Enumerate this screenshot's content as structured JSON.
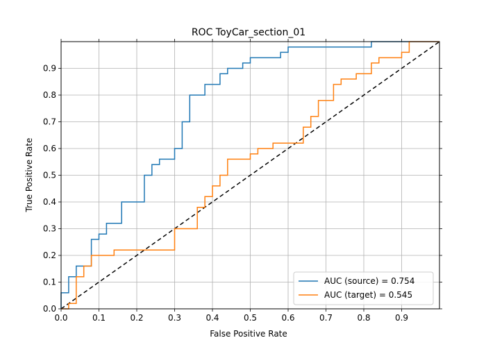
{
  "chart_data": {
    "type": "line",
    "title": "ROC ToyCar_section_01",
    "xlabel": "False Positive Rate",
    "ylabel": "True Positive Rate",
    "xlim": [
      0.0,
      1.0
    ],
    "ylim": [
      0.0,
      1.0
    ],
    "xticks": [
      0.0,
      0.1,
      0.2,
      0.3,
      0.4,
      0.5,
      0.6,
      0.7,
      0.8,
      0.9
    ],
    "xtick_labels": [
      "0.0",
      "0.1",
      "0.2",
      "0.3",
      "0.4",
      "0.5",
      "0.6",
      "0.7",
      "0.8",
      "0.9"
    ],
    "yticks": [
      0.0,
      0.1,
      0.2,
      0.3,
      0.4,
      0.5,
      0.6,
      0.7,
      0.8,
      0.9
    ],
    "ytick_labels": [
      "0.0",
      "0.1",
      "0.2",
      "0.3",
      "0.4",
      "0.5",
      "0.6",
      "0.7",
      "0.8",
      "0.9"
    ],
    "grid": true,
    "legend_position": "bottom-right",
    "colors": {
      "source": "#1f77b4",
      "target": "#ff7f0e",
      "diagonal": "#000000"
    },
    "series": [
      {
        "name": "AUC (source) = 0.754",
        "color": "#1f77b4",
        "points": [
          [
            0.0,
            0.0
          ],
          [
            0.0,
            0.06
          ],
          [
            0.02,
            0.06
          ],
          [
            0.02,
            0.12
          ],
          [
            0.04,
            0.12
          ],
          [
            0.04,
            0.16
          ],
          [
            0.06,
            0.16
          ],
          [
            0.08,
            0.16
          ],
          [
            0.08,
            0.26
          ],
          [
            0.1,
            0.26
          ],
          [
            0.1,
            0.28
          ],
          [
            0.12,
            0.28
          ],
          [
            0.12,
            0.32
          ],
          [
            0.16,
            0.32
          ],
          [
            0.16,
            0.4
          ],
          [
            0.22,
            0.4
          ],
          [
            0.22,
            0.5
          ],
          [
            0.24,
            0.5
          ],
          [
            0.24,
            0.54
          ],
          [
            0.26,
            0.54
          ],
          [
            0.26,
            0.56
          ],
          [
            0.3,
            0.56
          ],
          [
            0.3,
            0.6
          ],
          [
            0.32,
            0.6
          ],
          [
            0.32,
            0.7
          ],
          [
            0.34,
            0.7
          ],
          [
            0.34,
            0.8
          ],
          [
            0.38,
            0.8
          ],
          [
            0.38,
            0.84
          ],
          [
            0.42,
            0.84
          ],
          [
            0.42,
            0.88
          ],
          [
            0.44,
            0.88
          ],
          [
            0.44,
            0.9
          ],
          [
            0.48,
            0.9
          ],
          [
            0.48,
            0.92
          ],
          [
            0.5,
            0.92
          ],
          [
            0.5,
            0.94
          ],
          [
            0.58,
            0.94
          ],
          [
            0.58,
            0.96
          ],
          [
            0.6,
            0.96
          ],
          [
            0.6,
            0.98
          ],
          [
            0.82,
            0.98
          ],
          [
            0.82,
            1.0
          ],
          [
            1.0,
            1.0
          ]
        ]
      },
      {
        "name": "AUC (target) = 0.545",
        "color": "#ff7f0e",
        "points": [
          [
            0.0,
            0.0
          ],
          [
            0.02,
            0.0
          ],
          [
            0.02,
            0.02
          ],
          [
            0.04,
            0.02
          ],
          [
            0.04,
            0.12
          ],
          [
            0.06,
            0.12
          ],
          [
            0.06,
            0.16
          ],
          [
            0.08,
            0.16
          ],
          [
            0.08,
            0.2
          ],
          [
            0.14,
            0.2
          ],
          [
            0.14,
            0.22
          ],
          [
            0.3,
            0.22
          ],
          [
            0.3,
            0.3
          ],
          [
            0.36,
            0.3
          ],
          [
            0.36,
            0.38
          ],
          [
            0.38,
            0.38
          ],
          [
            0.38,
            0.42
          ],
          [
            0.4,
            0.42
          ],
          [
            0.4,
            0.46
          ],
          [
            0.42,
            0.46
          ],
          [
            0.42,
            0.5
          ],
          [
            0.44,
            0.5
          ],
          [
            0.44,
            0.56
          ],
          [
            0.5,
            0.56
          ],
          [
            0.5,
            0.58
          ],
          [
            0.52,
            0.58
          ],
          [
            0.52,
            0.6
          ],
          [
            0.56,
            0.6
          ],
          [
            0.56,
            0.62
          ],
          [
            0.64,
            0.62
          ],
          [
            0.64,
            0.68
          ],
          [
            0.66,
            0.68
          ],
          [
            0.66,
            0.72
          ],
          [
            0.68,
            0.72
          ],
          [
            0.68,
            0.78
          ],
          [
            0.72,
            0.78
          ],
          [
            0.72,
            0.84
          ],
          [
            0.74,
            0.84
          ],
          [
            0.74,
            0.86
          ],
          [
            0.78,
            0.86
          ],
          [
            0.78,
            0.88
          ],
          [
            0.82,
            0.88
          ],
          [
            0.82,
            0.92
          ],
          [
            0.84,
            0.92
          ],
          [
            0.84,
            0.94
          ],
          [
            0.9,
            0.94
          ],
          [
            0.9,
            0.96
          ],
          [
            0.92,
            0.96
          ],
          [
            0.92,
            1.0
          ],
          [
            1.0,
            1.0
          ]
        ]
      }
    ],
    "diagonal": [
      [
        0.0,
        0.0
      ],
      [
        1.0,
        1.0
      ]
    ]
  }
}
